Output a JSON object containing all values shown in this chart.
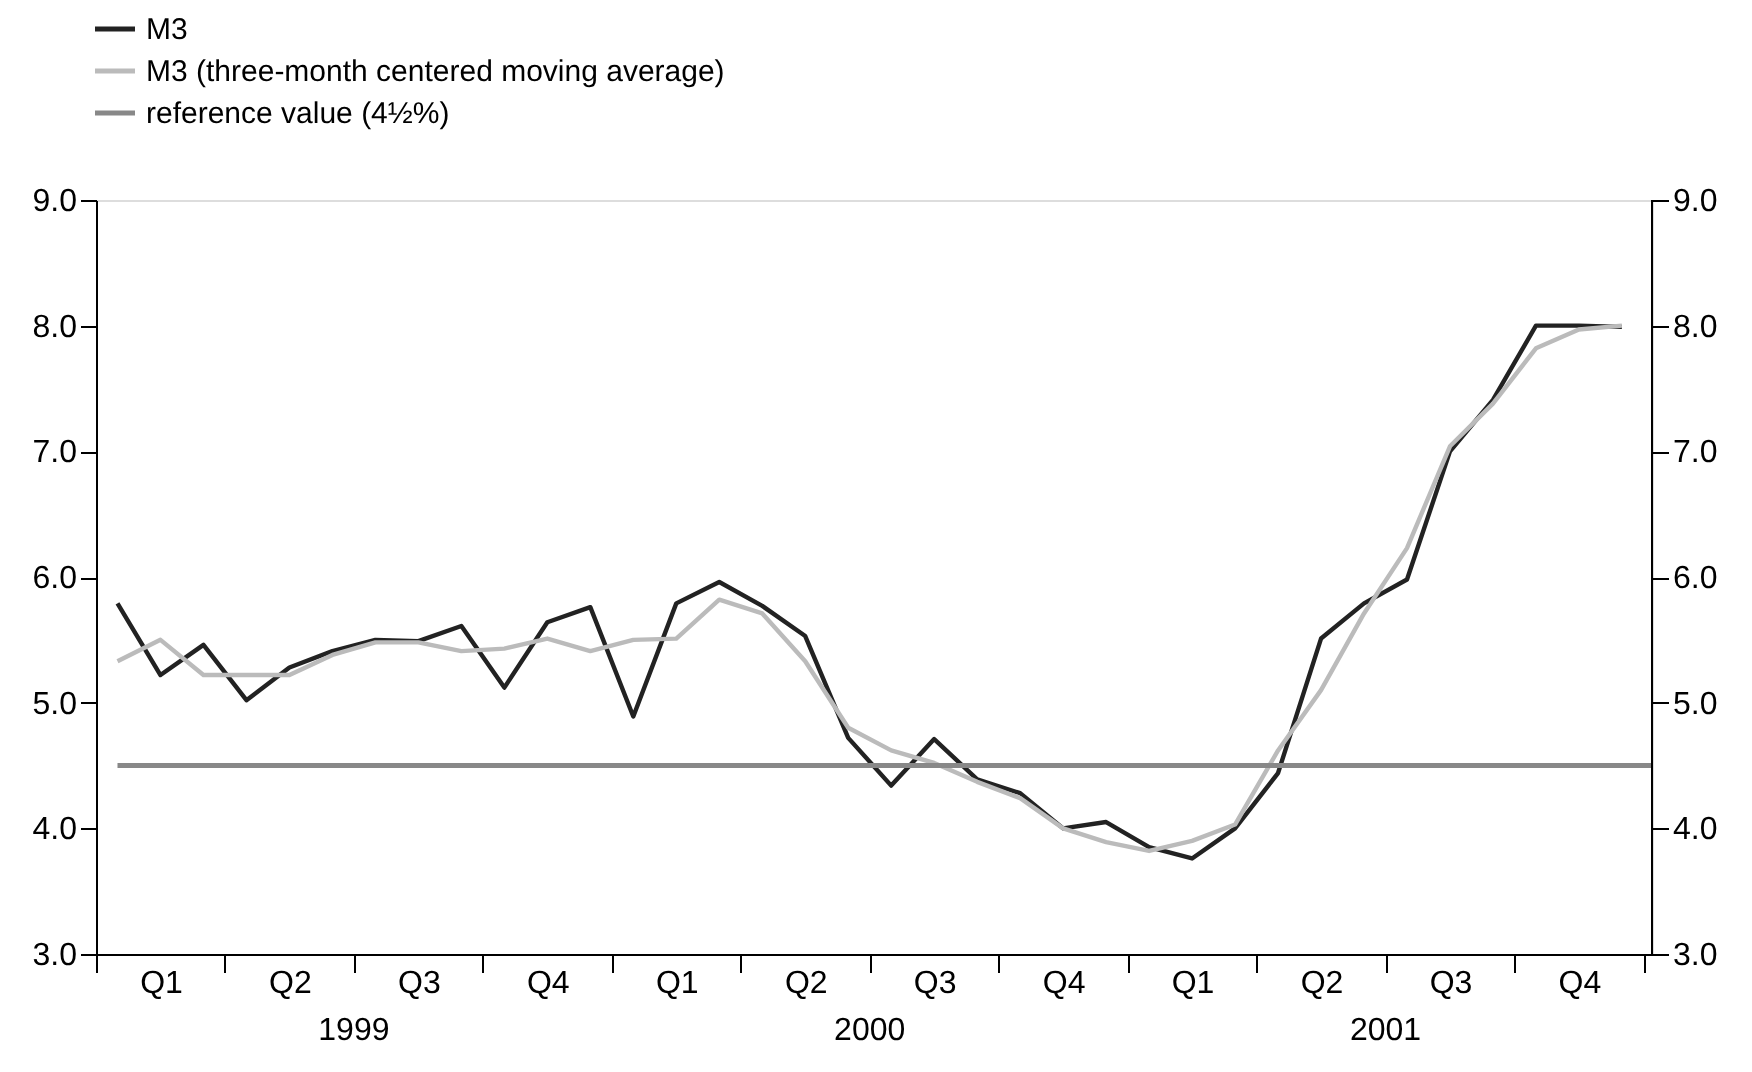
{
  "chart_data": {
    "type": "line",
    "categories": [
      null,
      "Q1",
      null,
      null,
      "Q2",
      null,
      null,
      "Q3",
      null,
      null,
      "Q4",
      null,
      null,
      "Q1",
      null,
      null,
      "Q2",
      null,
      null,
      "Q3",
      null,
      null,
      "Q4",
      null,
      null,
      "Q1",
      null,
      null,
      "Q2",
      null,
      null,
      "Q3",
      null,
      null,
      "Q4",
      null
    ],
    "series": [
      {
        "name": "M3",
        "color": "#222222",
        "values": [
          5.79,
          5.22,
          5.46,
          5.02,
          5.28,
          5.41,
          5.5,
          5.49,
          5.61,
          5.12,
          5.64,
          5.76,
          4.89,
          5.79,
          5.96,
          5.77,
          5.53,
          4.72,
          4.34,
          4.71,
          4.39,
          4.28,
          4.0,
          4.05,
          3.85,
          3.76,
          4.0,
          4.44,
          5.51,
          5.79,
          5.98,
          7.0,
          7.41,
          8.0,
          8.0,
          7.99
        ]
      },
      {
        "name": "M3 (three-month centered moving average)",
        "color": "#bbbbbb",
        "values": [
          5.33,
          5.5,
          5.22,
          5.22,
          5.22,
          5.38,
          5.48,
          5.48,
          5.41,
          5.43,
          5.51,
          5.41,
          5.5,
          5.51,
          5.82,
          5.71,
          5.33,
          4.8,
          4.62,
          4.52,
          4.37,
          4.24,
          4.0,
          3.89,
          3.82,
          3.9,
          4.03,
          4.62,
          5.1,
          5.71,
          6.23,
          7.04,
          7.38,
          7.82,
          7.97,
          8.0
        ]
      }
    ],
    "ref_lines": [
      {
        "axis": "y",
        "value": 4.5,
        "label": "reference value (4½%)",
        "color": "#888888"
      }
    ],
    "ylim": [
      3,
      9
    ],
    "yticks": [
      {
        "value": 3,
        "label": "3.0"
      },
      {
        "value": 4,
        "label": "4.0"
      },
      {
        "value": 5,
        "label": "5.0"
      },
      {
        "value": 6,
        "label": "6.0"
      },
      {
        "value": 7,
        "label": "7.0"
      },
      {
        "value": 8,
        "label": "8.0"
      },
      {
        "value": 9,
        "label": "9.0"
      }
    ],
    "y2lim": [
      3,
      9
    ],
    "y2ticks": [
      {
        "value": 3,
        "label": "3.0"
      },
      {
        "value": 4,
        "label": "4.0"
      },
      {
        "value": 5,
        "label": "5.0"
      },
      {
        "value": 6,
        "label": "6.0"
      },
      {
        "value": 7,
        "label": "7.0"
      },
      {
        "value": 8,
        "label": "8.0"
      },
      {
        "value": 9,
        "label": "9.0"
      }
    ],
    "annotations": [
      "1999",
      "2000",
      "2001"
    ],
    "legend": "top left",
    "grid": false,
    "line_style": "solid",
    "marker": "none"
  }
}
